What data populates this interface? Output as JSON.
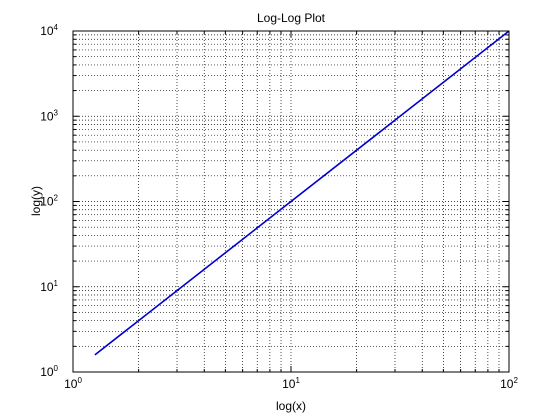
{
  "chart_data": {
    "type": "line",
    "title": "Log-Log Plot",
    "xlabel": "log(x)",
    "ylabel": "log(y)",
    "xscale": "log",
    "yscale": "log",
    "xlim": [
      1,
      100
    ],
    "ylim": [
      1,
      10000
    ],
    "grid": true,
    "x_ticks": [
      {
        "value": 1,
        "base": "10",
        "exp": "0"
      },
      {
        "value": 10,
        "base": "10",
        "exp": "1"
      },
      {
        "value": 100,
        "base": "10",
        "exp": "2"
      }
    ],
    "y_ticks": [
      {
        "value": 1,
        "base": "10",
        "exp": "0"
      },
      {
        "value": 10,
        "base": "10",
        "exp": "1"
      },
      {
        "value": 100,
        "base": "10",
        "exp": "2"
      },
      {
        "value": 1000,
        "base": "10",
        "exp": "3"
      },
      {
        "value": 10000,
        "base": "10",
        "exp": "4"
      }
    ],
    "series": [
      {
        "color": "#0000cc",
        "x": [
          1.26,
          100
        ],
        "y": [
          1.59,
          10000
        ]
      }
    ]
  }
}
